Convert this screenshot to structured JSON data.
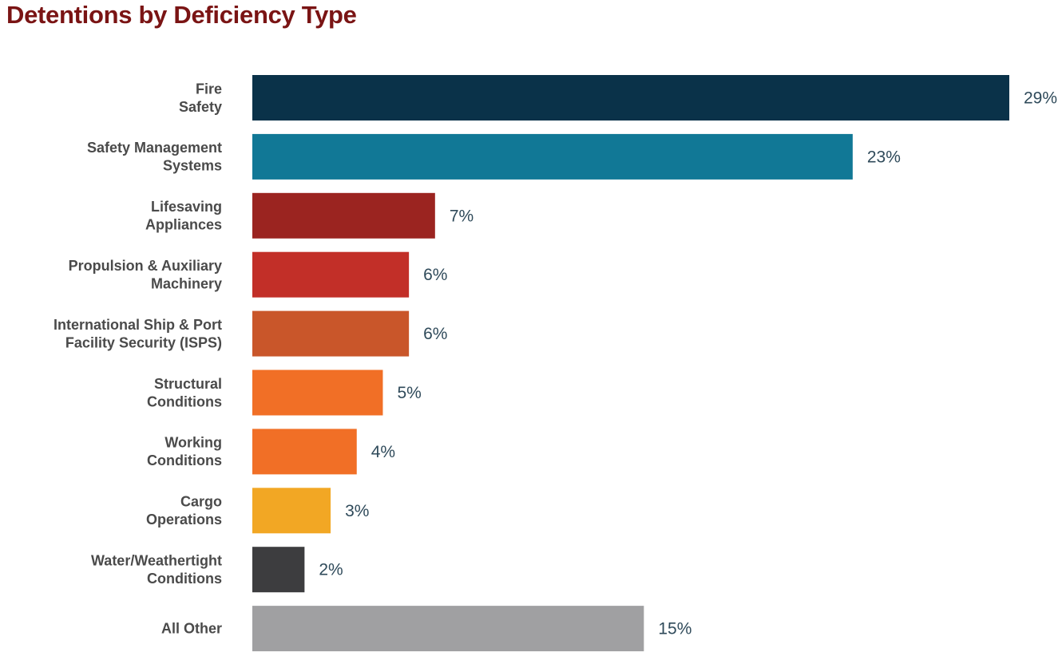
{
  "chart_data": {
    "type": "bar",
    "orientation": "horizontal",
    "title": "Detentions by Deficiency Type",
    "categories": [
      [
        "Fire",
        "Safety"
      ],
      [
        "Safety Management",
        "Systems"
      ],
      [
        "Lifesaving",
        "Appliances"
      ],
      [
        "Propulsion & Auxiliary",
        "Machinery"
      ],
      [
        "International Ship & Port",
        "Facility Security (ISPS)"
      ],
      [
        "Structural",
        "Conditions"
      ],
      [
        "Working",
        "Conditions"
      ],
      [
        "Cargo",
        "Operations"
      ],
      [
        "Water/Weathertight",
        "Conditions"
      ],
      [
        "All Other"
      ]
    ],
    "values": [
      29,
      23,
      7,
      6,
      6,
      5,
      4,
      3,
      2,
      15
    ],
    "value_labels": [
      "29%",
      "23%",
      "7%",
      "6%",
      "6%",
      "5%",
      "4%",
      "3%",
      "2%",
      "15%"
    ],
    "colors": [
      "#0a3249",
      "#117896",
      "#9b2420",
      "#c22f28",
      "#c9562a",
      "#f16f26",
      "#f16f26",
      "#f2a724",
      "#3d3d3f",
      "#a0a0a2"
    ],
    "xlabel": "",
    "ylabel": "",
    "xlim": [
      0,
      29
    ],
    "grid": false,
    "legend": "none"
  }
}
